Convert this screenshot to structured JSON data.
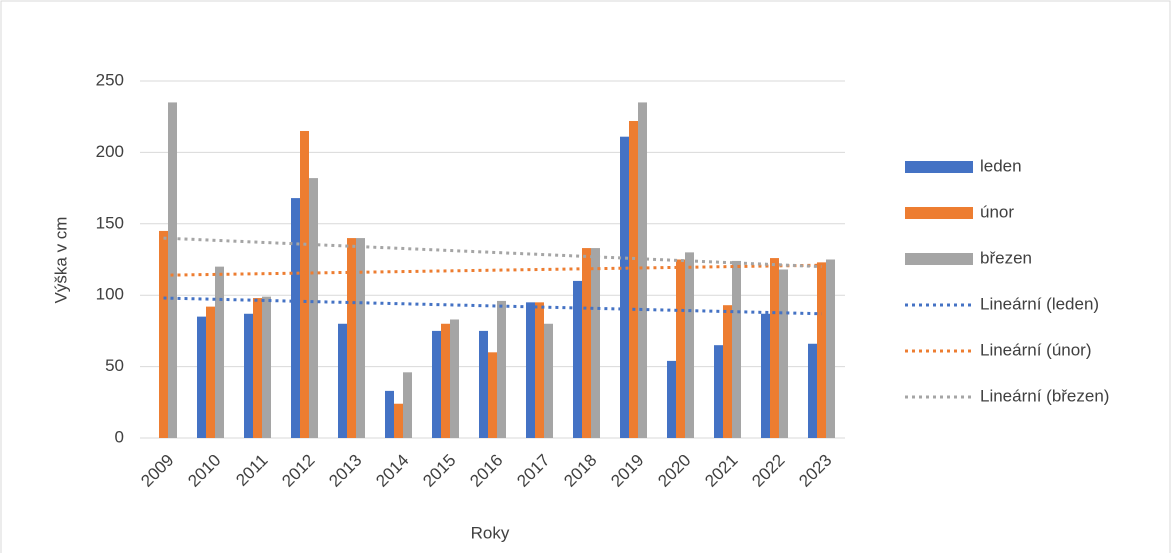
{
  "chart_data": {
    "type": "bar",
    "x_label": "Roky",
    "y_label": "Výška v cm",
    "categories": [
      "2009",
      "2010",
      "2011",
      "2012",
      "2013",
      "2014",
      "2015",
      "2016",
      "2017",
      "2018",
      "2019",
      "2020",
      "2021",
      "2022",
      "2023"
    ],
    "series": [
      {
        "name": "leden",
        "color": "#4472c4",
        "values": [
          null,
          85,
          87,
          168,
          80,
          33,
          75,
          75,
          95,
          110,
          211,
          54,
          65,
          87,
          66
        ],
        "trend_name": "Lineární (leden)",
        "trend": {
          "start": 98,
          "end": 87
        }
      },
      {
        "name": "únor",
        "color": "#ed7d31",
        "values": [
          145,
          92,
          98,
          215,
          140,
          24,
          80,
          60,
          95,
          133,
          222,
          125,
          93,
          126,
          123
        ],
        "trend_name": "Lineární (únor)",
        "trend": {
          "start": 114,
          "end": 121
        }
      },
      {
        "name": "březen",
        "color": "#a5a5a5",
        "values": [
          235,
          120,
          99,
          182,
          140,
          46,
          83,
          96,
          80,
          133,
          235,
          130,
          124,
          118,
          125
        ],
        "trend_name": "Lineární (březen)",
        "trend": {
          "start": 140,
          "end": 120
        }
      }
    ],
    "ylim": [
      0,
      250
    ],
    "yticks": [
      0,
      50,
      100,
      150,
      200,
      250
    ],
    "grid": true,
    "legend": "right"
  }
}
